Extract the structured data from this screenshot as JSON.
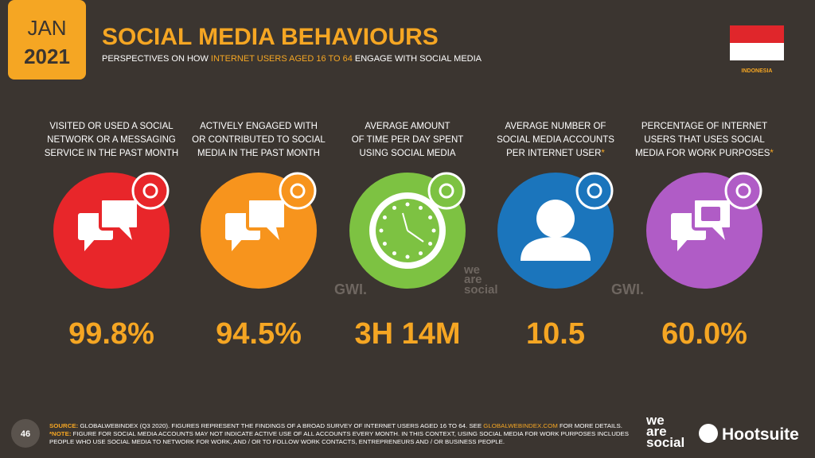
{
  "header": {
    "month": "JAN",
    "year": "2021",
    "title": "SOCIAL MEDIA BEHAVIOURS",
    "subtitle": [
      "PERSPECTIVES ON HOW ",
      "INTERNET USERS AGED 16 TO 64",
      " ENGAGE WITH SOCIAL MEDIA"
    ],
    "country": "INDONESIA"
  },
  "stats": [
    {
      "label_lines": [
        "VISITED OR USED A SOCIAL",
        "NETWORK OR A MESSAGING",
        "SERVICE IN THE PAST MONTH"
      ],
      "value": "99.8%"
    },
    {
      "label_lines": [
        "ACTIVELY ENGAGED WITH",
        "OR CONTRIBUTED TO SOCIAL",
        "MEDIA IN THE PAST MONTH"
      ],
      "value": "94.5%"
    },
    {
      "label_lines": [
        "AVERAGE AMOUNT",
        "OF TIME PER DAY SPENT",
        "USING SOCIAL MEDIA"
      ],
      "value": "3H 14M"
    },
    {
      "label_lines": [
        "AVERAGE NUMBER OF",
        "SOCIAL MEDIA ACCOUNTS",
        "PER INTERNET USER"
      ],
      "note_mark": "*",
      "value": "10.5"
    },
    {
      "label_lines": [
        "PERCENTAGE OF INTERNET",
        "USERS THAT USES SOCIAL",
        "MEDIA FOR WORK PURPOSES"
      ],
      "note_mark": "*",
      "value": "60.0%"
    }
  ],
  "watermarks": [
    "GWI.",
    "GWI."
  ],
  "footer": {
    "page": "46",
    "source_label": "SOURCE:",
    "source_text": [
      " GLOBALWEBINDEX (Q3 2020). FIGURES REPRESENT THE FINDINGS OF A BROAD SURVEY OF INTERNET USERS AGED 16 TO 64. SEE ",
      "GLOBALWEBINDEX.COM",
      " FOR MORE DETAILS."
    ],
    "note_label": "*NOTE:",
    "note_text": [
      " FIGURE FOR SOCIAL MEDIA ACCOUNTS MAY NOT INDICATE ACTIVE USE OF ALL ACCOUNTS EVERY MONTH. IN THIS CONTEXT, USING SOCIAL MEDIA FOR WORK PURPOSES INCLUDES",
      "PEOPLE WHO USE SOCIAL MEDIA TO NETWORK FOR WORK, AND / OR TO FOLLOW WORK CONTACTS, ENTREPRENEURS AND / OR BUSINESS PEOPLE."
    ],
    "logo_lines": [
      "we",
      "are",
      "social"
    ],
    "brand": "Hootsuite"
  }
}
